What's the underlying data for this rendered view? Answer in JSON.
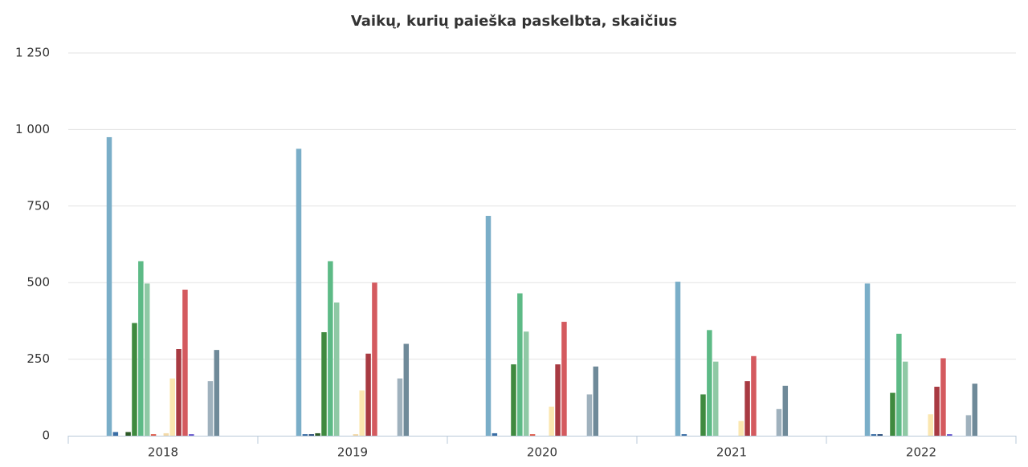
{
  "chart_data": {
    "type": "bar",
    "title": "Vaikų, kurių paieška paskelbta, skaičius",
    "categories": [
      "2018",
      "2019",
      "2020",
      "2021",
      "2022"
    ],
    "ylim": [
      0,
      1250
    ],
    "yticks": [
      0,
      250,
      500,
      750,
      {
        "value": 1000,
        "label": "1 000"
      },
      {
        "value": 1250,
        "label": "1 250"
      }
    ],
    "grid": true,
    "series": [
      {
        "color": "#7aaec8",
        "values": [
          975,
          937,
          718,
          503,
          497
        ]
      },
      {
        "color": "#3a6ea5",
        "values": [
          12,
          5,
          8,
          5,
          5
        ]
      },
      {
        "color": "#2c4f7c",
        "values": [
          null,
          5,
          null,
          null,
          5
        ]
      },
      {
        "color": "#2d5a27",
        "values": [
          12,
          8,
          null,
          null,
          null
        ]
      },
      {
        "color": "#3f8a3f",
        "values": [
          368,
          338,
          233,
          135,
          140
        ]
      },
      {
        "color": "#5dba86",
        "values": [
          570,
          570,
          465,
          345,
          333
        ]
      },
      {
        "color": "#8fc9a5",
        "values": [
          497,
          435,
          340,
          242,
          242
        ]
      },
      {
        "color": "#e0604e",
        "values": [
          5,
          null,
          5,
          null,
          null
        ]
      },
      {
        "color": "#f3d9a8",
        "values": [
          8,
          5,
          null,
          null,
          null
        ]
      },
      {
        "color": "#fbe7b0",
        "values": [
          187,
          148,
          95,
          48,
          70
        ]
      },
      {
        "color": "#a83a42",
        "values": [
          283,
          268,
          233,
          178,
          160
        ]
      },
      {
        "color": "#d45a5f",
        "values": [
          477,
          500,
          372,
          260,
          253
        ]
      },
      {
        "color": "#6a5acd",
        "values": [
          5,
          null,
          null,
          null,
          5
        ]
      },
      {
        "color": "#9fb1bd",
        "values": [
          178,
          187,
          135,
          87,
          67
        ]
      },
      {
        "color": "#6f8a99",
        "values": [
          280,
          300,
          226,
          163,
          170
        ]
      }
    ]
  }
}
